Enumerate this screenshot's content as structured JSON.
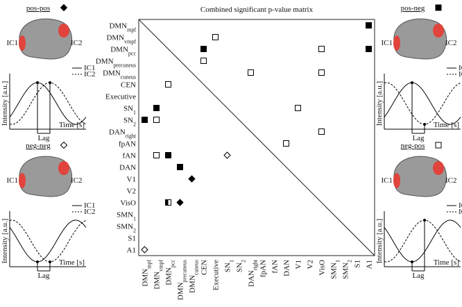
{
  "title": "Combined significant p-value matrix",
  "matrix": {
    "labels": [
      {
        "text": "DMN",
        "sub": "mpf"
      },
      {
        "text": "DMN",
        "sub": "vmpf"
      },
      {
        "text": "DMN",
        "sub": "pcc"
      },
      {
        "text": "DMN",
        "sub": "precuneus"
      },
      {
        "text": "DMN",
        "sub": "cuneus"
      },
      "CEN",
      "Executive",
      {
        "text": "SN",
        "sub": "1"
      },
      {
        "text": "SN",
        "sub": "2"
      },
      {
        "text": "DAN",
        "sub": "right"
      },
      "fpAN",
      "fAN",
      "DAN",
      "V1",
      "V2",
      "VisO",
      {
        "text": "SMN",
        "sub": "1"
      },
      {
        "text": "SMN",
        "sub": "2"
      },
      "S1",
      "A1"
    ],
    "cells": [
      {
        "row": 0,
        "col": 19,
        "marker": "pos-neg"
      },
      {
        "row": 1,
        "col": 6,
        "marker": "neg-pos"
      },
      {
        "row": 2,
        "col": 5,
        "marker": "pos-neg"
      },
      {
        "row": 2,
        "col": 15,
        "marker": "neg-pos"
      },
      {
        "row": 2,
        "col": 19,
        "marker": "pos-neg"
      },
      {
        "row": 3,
        "col": 5,
        "marker": "neg-pos"
      },
      {
        "row": 4,
        "col": 9,
        "marker": "neg-pos"
      },
      {
        "row": 4,
        "col": 15,
        "marker": "neg-pos"
      },
      {
        "row": 5,
        "col": 2,
        "marker": "neg-pos"
      },
      {
        "row": 7,
        "col": 1,
        "marker": "pos-neg"
      },
      {
        "row": 7,
        "col": 13,
        "marker": "neg-pos"
      },
      {
        "row": 8,
        "col": 0,
        "marker": "pos-neg"
      },
      {
        "row": 8,
        "col": 1,
        "marker": "neg-pos"
      },
      {
        "row": 9,
        "col": 15,
        "marker": "neg-pos"
      },
      {
        "row": 10,
        "col": 12,
        "marker": "neg-pos"
      },
      {
        "row": 11,
        "col": 1,
        "marker": "neg-pos"
      },
      {
        "row": 11,
        "col": 2,
        "marker": "pos-neg"
      },
      {
        "row": 11,
        "col": 7,
        "marker": "neg-neg"
      },
      {
        "row": 12,
        "col": 3,
        "marker": "pos-neg"
      },
      {
        "row": 13,
        "col": 4,
        "marker": "pos-pos"
      },
      {
        "row": 15,
        "col": 2,
        "marker": "half"
      },
      {
        "row": 15,
        "col": 3,
        "marker": "pos-pos"
      },
      {
        "row": 19,
        "col": 0,
        "marker": "neg-neg"
      }
    ]
  },
  "panels": [
    {
      "title": "pos-pos",
      "ic1": "IC1",
      "ic2": "IC2",
      "legend": [
        "IC1",
        "IC2"
      ],
      "ylabel": "Intensity [a.u.]",
      "xlabel": "Time [s]",
      "lag": "Lag"
    },
    {
      "title": "pos-neg",
      "ic1": "IC1",
      "ic2": "IC2",
      "legend": [
        "IC1",
        "IC2"
      ],
      "ylabel": "Intensity [a.u.]",
      "xlabel": "Time [s]",
      "lag": "Lag"
    },
    {
      "title": "neg-neg",
      "ic1": "IC1",
      "ic2": "IC2",
      "legend": [
        "IC1",
        "IC2"
      ],
      "ylabel": "Intensity [a.u.]",
      "xlabel": "Time [s]",
      "lag": "Lag"
    },
    {
      "title": "neg-pos",
      "ic1": "IC1",
      "ic2": "IC2",
      "legend": [
        "IC1",
        "IC2"
      ],
      "ylabel": "Intensity [a.u.]",
      "xlabel": "Time [s]",
      "lag": "Lag"
    }
  ]
}
